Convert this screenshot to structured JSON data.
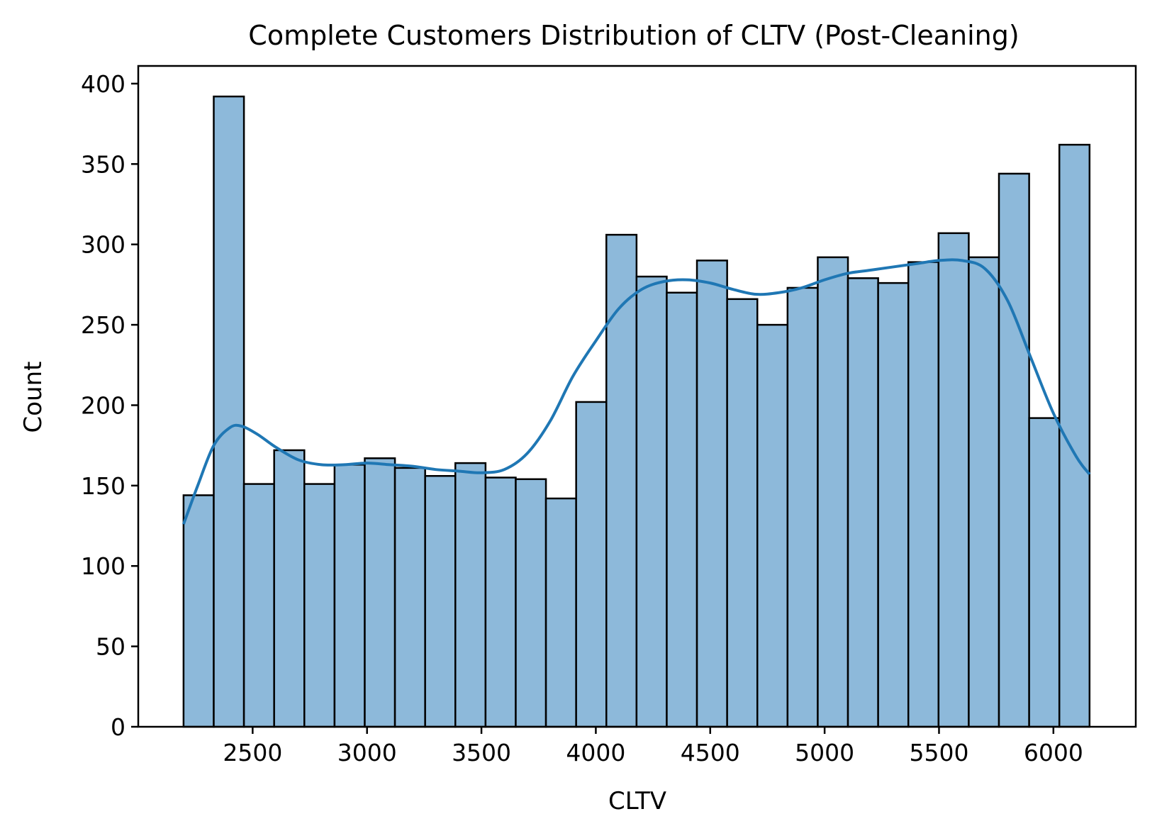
{
  "chart_data": {
    "type": "bar",
    "title": "Complete Customers Distribution of CLTV (Post-Cleaning)",
    "xlabel": "CLTV",
    "ylabel": "Count",
    "xlim": [
      2000,
      6360
    ],
    "ylim": [
      0,
      411
    ],
    "xticks": [
      2500,
      3000,
      3500,
      4000,
      4500,
      5000,
      5500,
      6000
    ],
    "yticks": [
      0,
      50,
      100,
      150,
      200,
      250,
      300,
      350,
      400
    ],
    "grid": false,
    "legend": "none",
    "bar_color": "#8db9da",
    "edge_color": "#000000",
    "kde_color": "#1f77b4",
    "bins": [
      {
        "x0": 2198,
        "x1": 2330,
        "count": 144
      },
      {
        "x0": 2330,
        "x1": 2462,
        "count": 392
      },
      {
        "x0": 2462,
        "x1": 2594,
        "count": 151
      },
      {
        "x0": 2594,
        "x1": 2726,
        "count": 172
      },
      {
        "x0": 2726,
        "x1": 2858,
        "count": 151
      },
      {
        "x0": 2858,
        "x1": 2990,
        "count": 163
      },
      {
        "x0": 2990,
        "x1": 3122,
        "count": 167
      },
      {
        "x0": 3122,
        "x1": 3254,
        "count": 161
      },
      {
        "x0": 3254,
        "x1": 3386,
        "count": 156
      },
      {
        "x0": 3386,
        "x1": 3518,
        "count": 164
      },
      {
        "x0": 3518,
        "x1": 3650,
        "count": 155
      },
      {
        "x0": 3650,
        "x1": 3782,
        "count": 154
      },
      {
        "x0": 3782,
        "x1": 3914,
        "count": 142
      },
      {
        "x0": 3914,
        "x1": 4046,
        "count": 202
      },
      {
        "x0": 4046,
        "x1": 4178,
        "count": 306
      },
      {
        "x0": 4178,
        "x1": 4310,
        "count": 280
      },
      {
        "x0": 4310,
        "x1": 4442,
        "count": 270
      },
      {
        "x0": 4442,
        "x1": 4574,
        "count": 290
      },
      {
        "x0": 4574,
        "x1": 4706,
        "count": 266
      },
      {
        "x0": 4706,
        "x1": 4838,
        "count": 250
      },
      {
        "x0": 4838,
        "x1": 4970,
        "count": 273
      },
      {
        "x0": 4970,
        "x1": 5102,
        "count": 292
      },
      {
        "x0": 5102,
        "x1": 5234,
        "count": 279
      },
      {
        "x0": 5234,
        "x1": 5366,
        "count": 276
      },
      {
        "x0": 5366,
        "x1": 5498,
        "count": 289
      },
      {
        "x0": 5498,
        "x1": 5630,
        "count": 307
      },
      {
        "x0": 5630,
        "x1": 5762,
        "count": 292
      },
      {
        "x0": 5762,
        "x1": 5894,
        "count": 344
      },
      {
        "x0": 5894,
        "x1": 6026,
        "count": 192
      },
      {
        "x0": 6026,
        "x1": 6158,
        "count": 362
      }
    ],
    "kde": [
      [
        2198,
        126
      ],
      [
        2260,
        150
      ],
      [
        2330,
        175
      ],
      [
        2400,
        186
      ],
      [
        2450,
        187
      ],
      [
        2520,
        182
      ],
      [
        2600,
        174
      ],
      [
        2700,
        166
      ],
      [
        2800,
        163
      ],
      [
        2900,
        163
      ],
      [
        3000,
        164
      ],
      [
        3100,
        163
      ],
      [
        3200,
        162
      ],
      [
        3300,
        160
      ],
      [
        3400,
        159
      ],
      [
        3500,
        158
      ],
      [
        3600,
        160
      ],
      [
        3700,
        170
      ],
      [
        3800,
        190
      ],
      [
        3900,
        218
      ],
      [
        4000,
        240
      ],
      [
        4100,
        260
      ],
      [
        4200,
        272
      ],
      [
        4300,
        277
      ],
      [
        4400,
        278
      ],
      [
        4500,
        276
      ],
      [
        4600,
        272
      ],
      [
        4700,
        269
      ],
      [
        4800,
        270
      ],
      [
        4900,
        273
      ],
      [
        5000,
        278
      ],
      [
        5100,
        282
      ],
      [
        5200,
        284
      ],
      [
        5300,
        286
      ],
      [
        5400,
        288
      ],
      [
        5500,
        290
      ],
      [
        5600,
        290
      ],
      [
        5700,
        285
      ],
      [
        5800,
        265
      ],
      [
        5900,
        230
      ],
      [
        6000,
        195
      ],
      [
        6100,
        168
      ],
      [
        6158,
        157
      ]
    ]
  }
}
